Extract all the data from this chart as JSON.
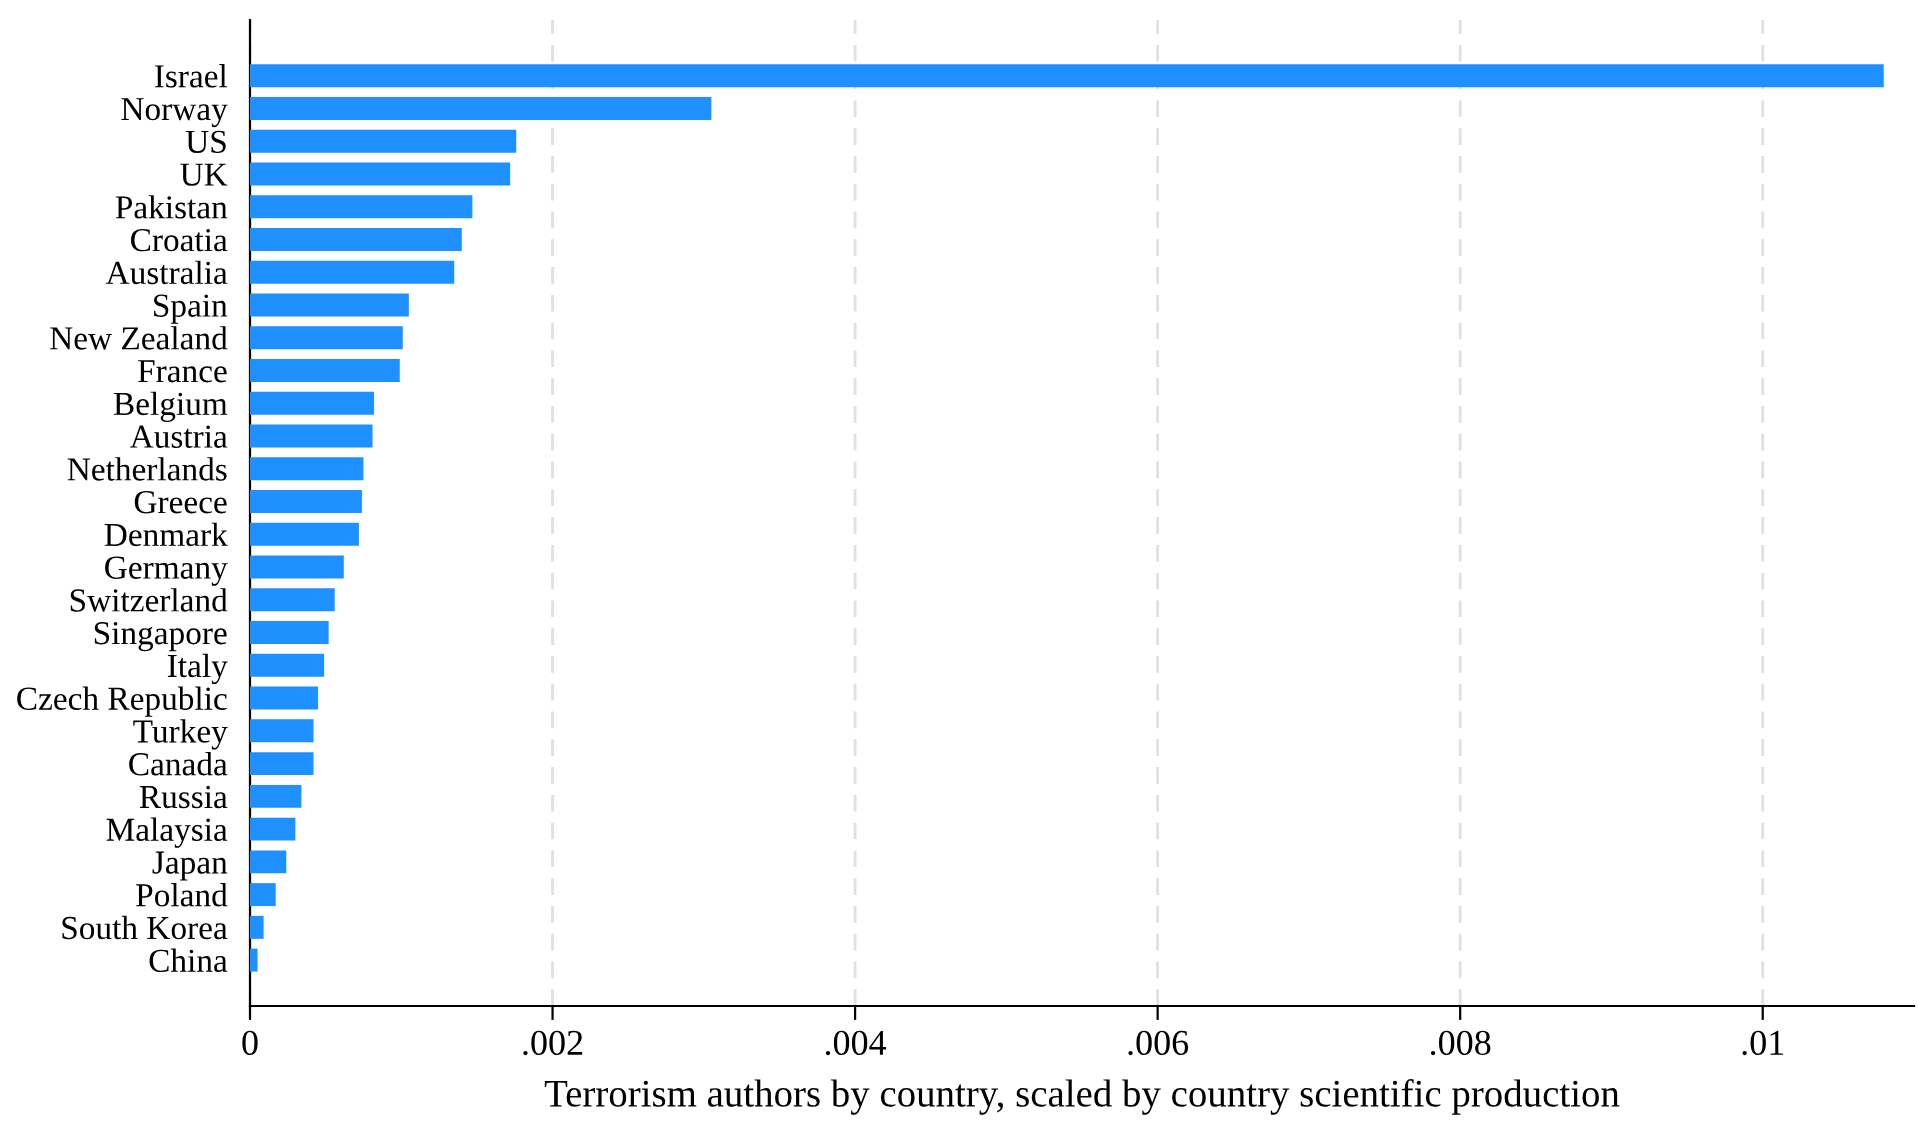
{
  "chart_data": {
    "type": "bar",
    "orientation": "horizontal",
    "xlabel": "Terrorism authors by country, scaled by country scientific production",
    "categories": [
      "Israel",
      "Norway",
      "US",
      "UK",
      "Pakistan",
      "Croatia",
      "Australia",
      "Spain",
      "New Zealand",
      "France",
      "Belgium",
      "Austria",
      "Netherlands",
      "Greece",
      "Denmark",
      "Germany",
      "Switzerland",
      "Singapore",
      "Italy",
      "Czech Republic",
      "Turkey",
      "Canada",
      "Russia",
      "Malaysia",
      "Japan",
      "Poland",
      "South Korea",
      "China"
    ],
    "values": [
      0.0108,
      0.00305,
      0.00176,
      0.00172,
      0.00147,
      0.0014,
      0.00135,
      0.00105,
      0.00101,
      0.00099,
      0.00082,
      0.00081,
      0.00075,
      0.00074,
      0.00072,
      0.00062,
      0.00056,
      0.00052,
      0.00049,
      0.00045,
      0.00042,
      0.00042,
      0.00034,
      0.0003,
      0.00024,
      0.00017,
      9e-05,
      5e-05
    ],
    "color": "#1e90ff",
    "xlim": [
      0,
      0.011
    ],
    "xticks": [
      0,
      {
        "value": 0.002,
        "label": ".002"
      },
      {
        "value": 0.004,
        "label": ".004"
      },
      {
        "value": 0.006,
        "label": ".006"
      },
      {
        "value": 0.008,
        "label": ".008"
      },
      {
        "value": 0.01,
        "label": ".01"
      }
    ],
    "grid": "x"
  }
}
